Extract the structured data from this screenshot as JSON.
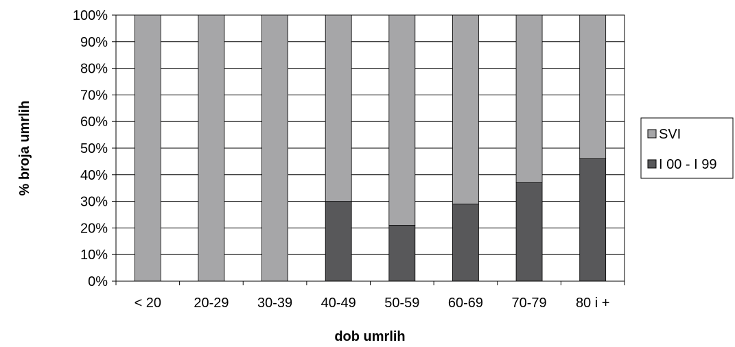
{
  "chart_data": {
    "type": "bar",
    "stacked": true,
    "categories": [
      "< 20",
      "20-29",
      "30-39",
      "40-49",
      "50-59",
      "60-69",
      "70-79",
      "80 i +"
    ],
    "series": [
      {
        "name": "I 00 - I 99",
        "color": "#58585a",
        "values": [
          0,
          0,
          0,
          30,
          21,
          29,
          37,
          46
        ]
      },
      {
        "name": "SVI",
        "color": "#a6a6a8",
        "values": [
          100,
          100,
          100,
          70,
          79,
          71,
          63,
          54
        ]
      }
    ],
    "xlabel": "dob umrlih",
    "ylabel": "% broja umrlih",
    "ylim": [
      0,
      100
    ],
    "yticks": [
      "0%",
      "10%",
      "20%",
      "30%",
      "40%",
      "50%",
      "60%",
      "70%",
      "80%",
      "90%",
      "100%"
    ],
    "grid": true,
    "legend_position": "right",
    "legend": [
      {
        "label": "SVI",
        "color": "#a6a6a8"
      },
      {
        "label": "I 00 - I 99",
        "color": "#58585a"
      }
    ]
  }
}
